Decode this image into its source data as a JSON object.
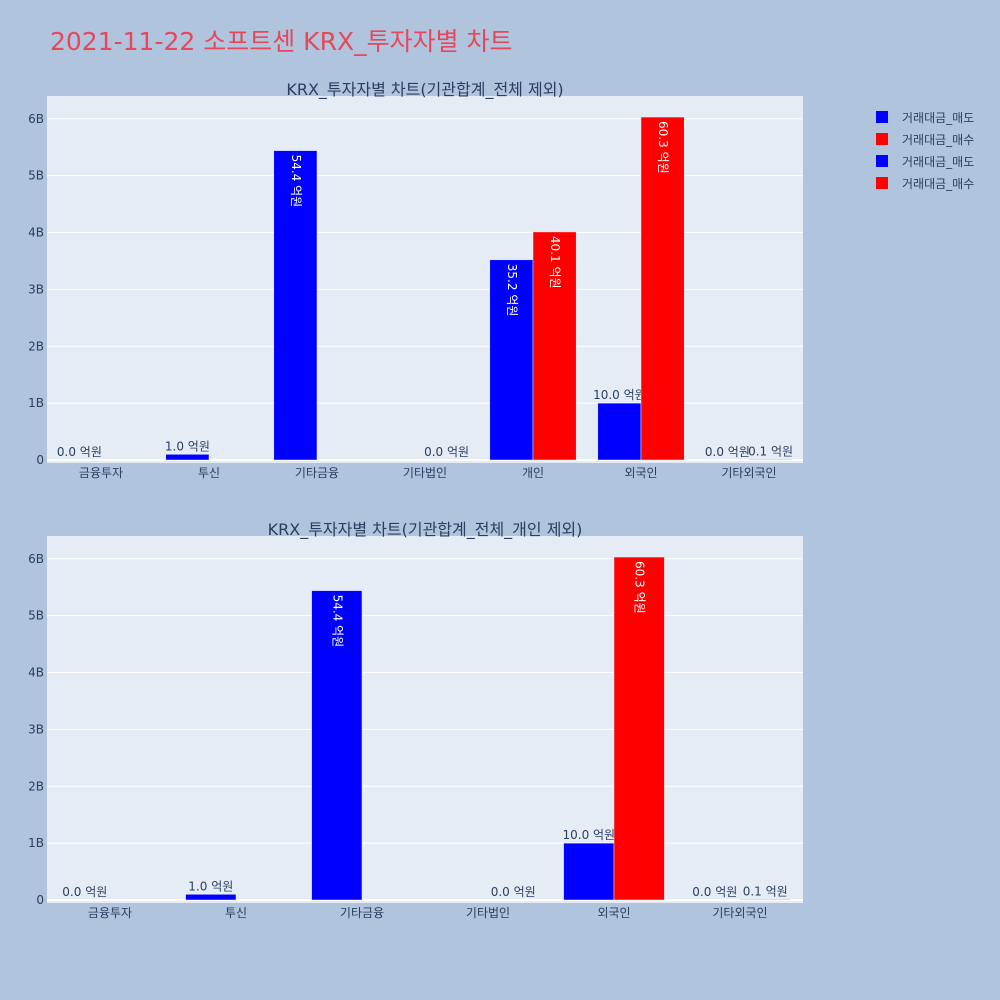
{
  "title": "2021-11-22 소프트센 KRX_투자자별 차트",
  "legend": [
    {
      "label": "거래대금_매도",
      "color": "#0000ff"
    },
    {
      "label": "거래대금_매수",
      "color": "#ff0000"
    },
    {
      "label": "거래대금_매도",
      "color": "#0000ff"
    },
    {
      "label": "거래대금_매수",
      "color": "#ff0000"
    }
  ],
  "chart_data": [
    {
      "type": "bar",
      "title": "KRX_투자자별 차트(기관합계_전체 제외)",
      "categories": [
        "금융투자",
        "투신",
        "기타금융",
        "기타법인",
        "개인",
        "외국인",
        "기타외국인"
      ],
      "y_ticks": [
        0,
        1000000000,
        2000000000,
        3000000000,
        4000000000,
        5000000000,
        6000000000
      ],
      "y_tick_labels": [
        "0",
        "1B",
        "2B",
        "3B",
        "4B",
        "5B",
        "6B"
      ],
      "ylim": [
        0,
        6400000000
      ],
      "series": [
        {
          "name": "거래대금_매도",
          "color": "#0000ff",
          "values": [
            0,
            100000000,
            5440000000,
            null,
            3520000000,
            1000000000,
            0
          ],
          "labels": [
            "0.0 억원",
            "1.0 억원",
            "54.4 억원",
            null,
            "35.2 억원",
            "10.0 억원",
            "0.0 억원"
          ]
        },
        {
          "name": "거래대금_매수",
          "color": "#ff0000",
          "values": [
            null,
            null,
            null,
            0,
            4010000000,
            6030000000,
            10000000
          ],
          "labels": [
            null,
            null,
            null,
            "0.0 억원",
            "40.1 억원",
            "60.3 억원",
            "0.1 억원"
          ]
        }
      ]
    },
    {
      "type": "bar",
      "title": "KRX_투자자별 차트(기관합계_전체_개인 제외)",
      "categories": [
        "금융투자",
        "투신",
        "기타금융",
        "기타법인",
        "외국인",
        "기타외국인"
      ],
      "y_ticks": [
        0,
        1000000000,
        2000000000,
        3000000000,
        4000000000,
        5000000000,
        6000000000
      ],
      "y_tick_labels": [
        "0",
        "1B",
        "2B",
        "3B",
        "4B",
        "5B",
        "6B"
      ],
      "ylim": [
        0,
        6400000000
      ],
      "series": [
        {
          "name": "거래대금_매도",
          "color": "#0000ff",
          "values": [
            0,
            100000000,
            5440000000,
            null,
            1000000000,
            0
          ],
          "labels": [
            "0.0 억원",
            "1.0 억원",
            "54.4 억원",
            null,
            "10.0 억원",
            "0.0 억원"
          ]
        },
        {
          "name": "거래대금_매수",
          "color": "#ff0000",
          "values": [
            null,
            null,
            null,
            0,
            6030000000,
            10000000
          ],
          "labels": [
            null,
            null,
            null,
            "0.0 억원",
            "60.3 억원",
            "0.1 억원"
          ]
        }
      ]
    }
  ]
}
